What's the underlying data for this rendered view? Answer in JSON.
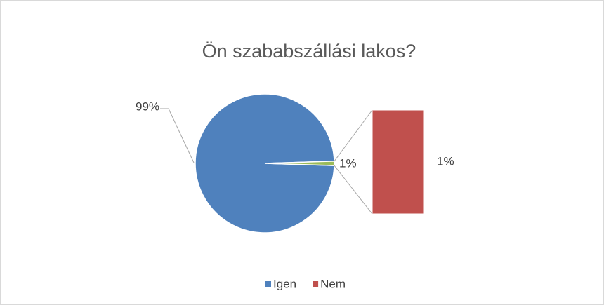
{
  "chart_data": {
    "type": "barofpie",
    "title": "Ön szababszállási  lakos?",
    "categories": [
      "Igen",
      "Nem"
    ],
    "values": [
      99,
      1
    ],
    "value_labels": [
      "99%",
      "1%"
    ],
    "colors": [
      "#4f81bd",
      "#c0504d"
    ],
    "other_color": "#9bbb59",
    "split_into_bar": [
      1
    ],
    "legend": "bottom"
  }
}
